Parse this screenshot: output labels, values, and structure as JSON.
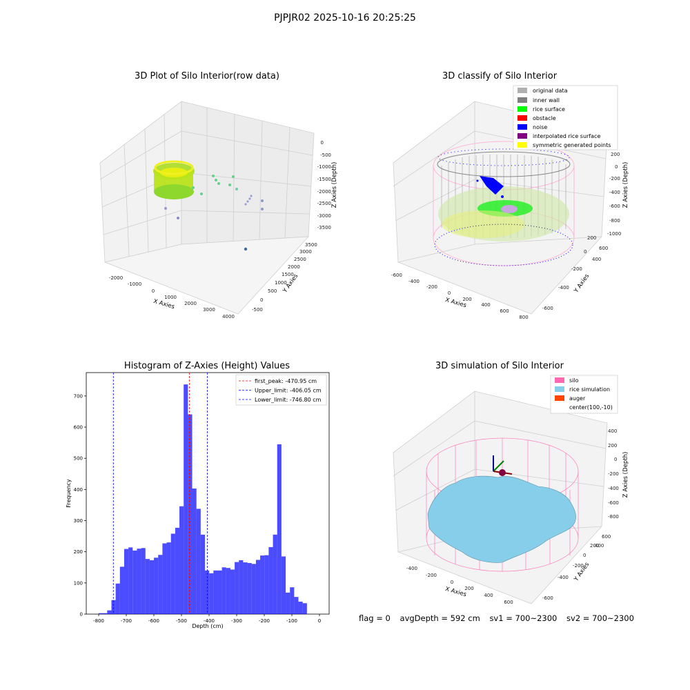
{
  "suptitle": "PJPJR02 2025-10-16 20:25:25",
  "panels": {
    "raw": {
      "title": "3D Plot of Silo Interior(row data)",
      "xlabel": "X Axies",
      "ylabel": "Y Axies",
      "zlabel": "Z Axies (Depth)",
      "xticks": [
        "-2000",
        "-1000",
        "0",
        "1000",
        "2000",
        "3000",
        "4000"
      ],
      "yticks": [
        "-500",
        "0",
        "500",
        "1000",
        "1500",
        "2000",
        "2500",
        "3000",
        "3500"
      ],
      "zticks": [
        "0",
        "-500",
        "-1000",
        "-1500",
        "-2000",
        "-2500",
        "-3000",
        "-3500"
      ]
    },
    "classify": {
      "title": "3D classify of Silo Interior",
      "xlabel": "X Axies",
      "ylabel": "Y Axies",
      "zlabel": "Z Axies (Depth)",
      "xticks": [
        "-600",
        "-400",
        "-200",
        "0",
        "200",
        "400",
        "600",
        "800"
      ],
      "yticks": [
        "-600",
        "-400",
        "-200",
        "0",
        "200",
        "400",
        "600"
      ],
      "zticks": [
        "200",
        "0",
        "-200",
        "-400",
        "-600",
        "-800",
        "-1000"
      ],
      "legend": [
        {
          "label": "original data",
          "color": "#b0b0b0"
        },
        {
          "label": "inner wall",
          "color": "#808080"
        },
        {
          "label": "rice surface",
          "color": "#00ff00"
        },
        {
          "label": "obstacle",
          "color": "#ff0000"
        },
        {
          "label": "noise",
          "color": "#0000ff"
        },
        {
          "label": "interpolated rice surface",
          "color": "#800080"
        },
        {
          "label": "symmetric generated points",
          "color": "#ffff00"
        }
      ]
    },
    "simulation": {
      "title": "3D simulation of Silo Interior",
      "xlabel": "X Axies",
      "ylabel": "Y Axies",
      "zlabel": "Z Axies (Depth)",
      "xticks": [
        "-400",
        "-200",
        "0",
        "200",
        "400",
        "600"
      ],
      "yticks": [
        "-600",
        "-400",
        "-200",
        "0",
        "200",
        "400",
        "600"
      ],
      "zticks": [
        "400",
        "200",
        "0",
        "-200",
        "-400",
        "-600",
        "-800"
      ],
      "legend": [
        {
          "label": "silo",
          "color": "#ff69b4"
        },
        {
          "label": "rice simulation",
          "color": "#87ceeb"
        },
        {
          "label": "auger",
          "color": "#ff4500"
        },
        {
          "label": "center(100,-10)",
          "color": ""
        }
      ]
    }
  },
  "chart_data": [
    {
      "type": "bar",
      "title": "Histogram of Z-Axies (Height) Values",
      "xlabel": "Depth (cm)",
      "ylabel": "Frequency",
      "xlim": [
        -845,
        35
      ],
      "ylim": [
        0,
        775
      ],
      "xticks": [
        -800,
        -700,
        -600,
        -500,
        -400,
        -300,
        -200,
        -100,
        0
      ],
      "yticks": [
        0,
        100,
        200,
        300,
        400,
        500,
        600,
        700
      ],
      "bin_start": -800,
      "bin_width": 15.4,
      "values": [
        3,
        3,
        12,
        45,
        98,
        152,
        209,
        214,
        204,
        210,
        212,
        177,
        173,
        181,
        190,
        227,
        230,
        258,
        277,
        346,
        737,
        641,
        403,
        338,
        255,
        140,
        131,
        140,
        140,
        150,
        148,
        143,
        167,
        173,
        166,
        164,
        161,
        174,
        188,
        189,
        215,
        255,
        545,
        185,
        69,
        86,
        55,
        40,
        35
      ],
      "bar_color": "#0000ff",
      "vlines": [
        {
          "label": "first_peak: -470.95 cm",
          "x": -470.95,
          "color": "#ff0000"
        },
        {
          "label": "Upper_limit: -406.05 cm",
          "x": -406.05,
          "color": "#0000ff"
        },
        {
          "label": "Lower_limit: -746.80 cm",
          "x": -746.8,
          "color": "#0000ff"
        }
      ],
      "legend_position": "top-right"
    }
  ],
  "footer": {
    "flag": "flag = 0",
    "avg": "avgDepth = 592 cm",
    "sv1": "sv1 = 700~2300",
    "sv2": "sv2 = 700~2300"
  }
}
